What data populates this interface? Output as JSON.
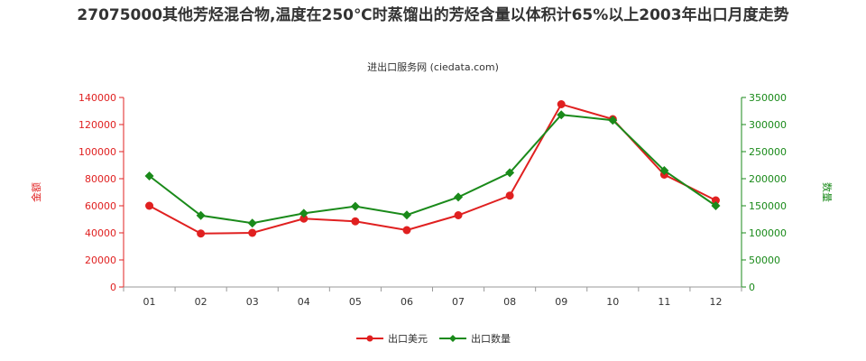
{
  "chart_data": {
    "type": "line",
    "title": "27075000其他芳烃混合物,温度在250℃时蒸馏出的芳烃含量以体积计65%以上2003年出口月度走势",
    "subtitle": "进出口服务网 (ciedata.com)",
    "categories": [
      "01",
      "02",
      "03",
      "04",
      "05",
      "06",
      "07",
      "08",
      "09",
      "10",
      "11",
      "12"
    ],
    "y_left": {
      "label": "金额",
      "ylim": [
        0,
        140000
      ],
      "ticks": [
        0,
        20000,
        40000,
        60000,
        80000,
        100000,
        120000,
        140000
      ],
      "color": "#e02020"
    },
    "y_right": {
      "label": "数量",
      "ylim": [
        0,
        350000
      ],
      "ticks": [
        0,
        50000,
        100000,
        150000,
        200000,
        250000,
        300000,
        350000
      ],
      "color": "#1a8a1a"
    },
    "series": [
      {
        "name": "出口美元",
        "axis": "left",
        "color": "#e02020",
        "marker": "circle",
        "values": [
          60000,
          39500,
          40000,
          50500,
          48500,
          42000,
          53000,
          67500,
          135000,
          124000,
          83000,
          64000
        ]
      },
      {
        "name": "出口数量",
        "axis": "right",
        "color": "#1a8a1a",
        "marker": "diamond",
        "values": [
          205000,
          132000,
          118000,
          136000,
          149000,
          133000,
          166000,
          211000,
          318000,
          308000,
          215000,
          150000
        ]
      }
    ],
    "grid": false,
    "legend_position": "bottom-center"
  }
}
